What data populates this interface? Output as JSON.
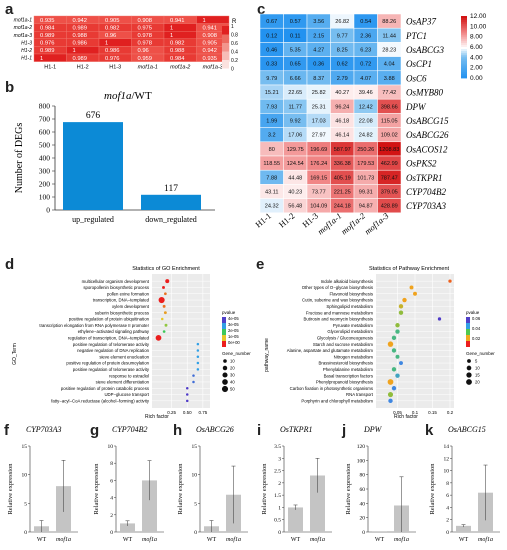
{
  "panel_labels": [
    "a",
    "b",
    "c",
    "d",
    "e",
    "f",
    "g",
    "h",
    "i",
    "j",
    "k"
  ],
  "panel_a": {
    "legend_title": "R",
    "legend_ticks": [
      "1",
      "0.8",
      "0.6",
      "0.4",
      "0.2",
      "0"
    ]
  },
  "panel_b": {
    "title_italic": "mof1a",
    "title_rest": "/WT",
    "wt_label": "WT"
  },
  "panel_c": {
    "colorbar_ticks": [
      "12.00",
      "10.00",
      "8.00",
      "6.00",
      "4.00",
      "2.00",
      "0.00"
    ]
  },
  "panel_d": {
    "title": "Statistics of GO Enrichment",
    "ylabel": "GO_Term",
    "xlabel": "Rich factor",
    "legend_color_title": "pvalue",
    "legend_color_ticks": [
      "4e-05",
      "3e-05",
      "2e-05",
      "1e-05",
      "0e+00"
    ],
    "legend_size_title": "Gene_number",
    "legend_size_ticks": [
      "10",
      "20",
      "30",
      "40",
      "50"
    ]
  },
  "panel_e": {
    "title": "Statistics of Pathway Enrichment",
    "ylabel": "pathway_name",
    "xlabel": "Rich factor",
    "legend_color_title": "pvalue",
    "legend_color_ticks": [
      "0.06",
      "0.04",
      "0.02"
    ],
    "legend_size_title": "Gene_number",
    "legend_size_ticks": [
      "5",
      "10",
      "15",
      "20"
    ]
  },
  "bar_ylabel": "Relative expression",
  "chart_data": [
    {
      "id": "a",
      "type": "heatmap",
      "rows": [
        "mof1a-1",
        "mof1a-2",
        "mof1a-3",
        "H1-3",
        "H1-2",
        "H1-1"
      ],
      "columns": [
        "H1-1",
        "H1-2",
        "H1-3",
        "mof1a-1",
        "mof1a-2",
        "mof1a-3"
      ],
      "values": [
        [
          0.935,
          0.942,
          0.905,
          0.908,
          0.941,
          1
        ],
        [
          0.984,
          0.989,
          0.982,
          0.975,
          1,
          0.941
        ],
        [
          0.989,
          0.988,
          0.96,
          0.978,
          1,
          0.908
        ],
        [
          0.976,
          0.986,
          1,
          0.978,
          0.982,
          0.905
        ],
        [
          0.989,
          1,
          0.986,
          0.96,
          0.988,
          0.942
        ],
        [
          1,
          0.989,
          0.976,
          0.959,
          0.984,
          0.935
        ]
      ],
      "color_range": [
        0,
        1
      ]
    },
    {
      "id": "b",
      "type": "bar",
      "categories": [
        "up_regulated",
        "down_regulated"
      ],
      "values": [
        676,
        117
      ],
      "ylabel": "Number of DEGs",
      "ylim": [
        0,
        800
      ],
      "yticks": [
        0,
        100,
        200,
        300,
        400,
        500,
        600,
        700,
        800
      ],
      "color": "#0c8ad6"
    },
    {
      "id": "c",
      "type": "heatmap",
      "rows": [
        "OsAP37",
        "PTC1",
        "OsABCG3",
        "OsCP1",
        "OsC6",
        "OsMYB80",
        "DPW",
        "OsABCG15",
        "OsABCG26",
        "OsACOS12",
        "OsPKS2",
        "OsTKPR1",
        "CYP704B2",
        "CYP703A3"
      ],
      "columns": [
        "H1-1",
        "H1-2",
        "H1-3",
        "mof1a-1",
        "mof1a-2",
        "mof1a-3"
      ],
      "values": [
        [
          0.67,
          0.57,
          3.56,
          26.82,
          0.54,
          88.26
        ],
        [
          0.12,
          0.11,
          2.15,
          9.77,
          2.36,
          11.44
        ],
        [
          0.46,
          5.35,
          4.27,
          8.25,
          6.23,
          28.23
        ],
        [
          0.33,
          0.65,
          0.36,
          0.62,
          0.72,
          4.04
        ],
        [
          9.79,
          6.66,
          8.37,
          2.79,
          4.07,
          3.88
        ],
        [
          15.21,
          22.65,
          25.82,
          40.27,
          39.46,
          77.42
        ],
        [
          7.93,
          11.77,
          25.31,
          96.24,
          12.42,
          398.66
        ],
        [
          1.99,
          9.92,
          17.03,
          46.18,
          22.08,
          115.05
        ],
        [
          3.2,
          17.06,
          27.97,
          46.14,
          24.82,
          109.02
        ],
        [
          80,
          129.75,
          196.69,
          587.97,
          250.26,
          1208.83
        ],
        [
          118.55,
          124.54,
          176.24,
          336.38,
          179.53,
          462.99
        ],
        [
          7.88,
          44.48,
          169.15,
          405.19,
          101.73,
          787.47
        ],
        [
          43.11,
          40.23,
          73.77,
          221.25,
          99.31,
          379.05
        ],
        [
          24.32,
          56.48,
          104.09,
          244.18,
          94.87,
          428.89
        ]
      ],
      "color_range": [
        0,
        12
      ]
    },
    {
      "id": "d",
      "type": "scatter",
      "terms": [
        "multicellular organism development",
        "sporopollenin biosynthetic process",
        "pollen exine formation",
        "transcription, DNA−templated",
        "xylem development",
        "suberin biosynthetic process",
        "positive regulation of protein ubiquitination",
        "transcription elongation from RNA polymerase II promoter",
        "ethylene−activated signaling pathway",
        "regulation of transcription, DNA−templated",
        "positive regulation of telomerase activity",
        "negative regulation of DNA replication",
        "sieve element enucleation",
        "positive regulation of protein desumoylation",
        "positive regulation of telomerase activity",
        "response to estradiol",
        "sieve element differentiation",
        "positive regulation of protein catabolic process",
        "UDP−glucose transport",
        "fatty−acyl−CoA reductase (alcohol−forming) activity"
      ],
      "rich_factor": [
        0.18,
        0.12,
        0.15,
        0.09,
        0.13,
        0.15,
        0.1,
        0.16,
        0.13,
        0.04,
        0.67,
        0.67,
        0.67,
        0.67,
        0.67,
        0.6,
        0.6,
        0.5,
        0.5,
        0.5
      ],
      "gene_number": [
        14,
        4,
        3,
        50,
        4,
        4,
        2,
        4,
        3,
        42,
        2,
        2,
        2,
        2,
        2,
        2,
        2,
        2,
        2,
        2
      ],
      "pvalue": [
        0.0,
        0.0,
        1e-05,
        0.0,
        1e-05,
        1.5e-05,
        2e-05,
        2.5e-05,
        3e-05,
        0.0,
        4e-05,
        4e-05,
        4e-05,
        4e-05,
        4e-05,
        4.5e-05,
        4.5e-05,
        5e-05,
        5e-05,
        5e-05
      ],
      "xticks": [
        0.25,
        0.5,
        0.75
      ],
      "xlim": [
        0,
        0.8
      ]
    },
    {
      "id": "e",
      "type": "scatter",
      "terms": [
        "Indole alkaloid biosynthesis",
        "Other types of O−glycan biosynthesis",
        "Flavonoid biosynthesis",
        "Cutin, suberine and wax biosynthesis",
        "Sphingolipid metabolism",
        "Fructose and mannose metabolism",
        "Butirosin and neomycin biosynthesis",
        "Pyruvate metabolism",
        "Glycerolipid metabolism",
        "Glycolysis / Gluconeogenesis",
        "Starch and sucrose metabolism",
        "Alanine, aspartate and glutamate metabolism",
        "Nitrogen metabolism",
        "Brassinosteroid biosynthesis",
        "Phenylalanine metabolism",
        "Basal transcription factors",
        "Phenylpropanoid biosynthesis",
        "Carbon fixation in photosynthetic organisms",
        "RNA transport",
        "Porphyrin and chlorophyll metabolism"
      ],
      "rich_factor": [
        0.2,
        0.09,
        0.1,
        0.07,
        0.06,
        0.06,
        0.17,
        0.05,
        0.05,
        0.04,
        0.03,
        0.04,
        0.05,
        0.06,
        0.04,
        0.05,
        0.03,
        0.04,
        0.03,
        0.03
      ],
      "gene_number": [
        1,
        2,
        2,
        3,
        3,
        3,
        1,
        3,
        3,
        3,
        6,
        3,
        2,
        2,
        3,
        3,
        7,
        3,
        5,
        3
      ],
      "pvalue": [
        0.01,
        0.02,
        0.02,
        0.02,
        0.025,
        0.03,
        0.06,
        0.03,
        0.04,
        0.04,
        0.02,
        0.04,
        0.04,
        0.05,
        0.04,
        0.045,
        0.02,
        0.05,
        0.03,
        0.05
      ],
      "xticks": [
        0.05,
        0.1,
        0.15,
        0.2
      ],
      "xlim": [
        0,
        0.2
      ]
    },
    {
      "id": "f",
      "type": "bar",
      "title": "CYP703A3",
      "categories": [
        "WT",
        "mof1a"
      ],
      "values": [
        1.0,
        8.0
      ],
      "errors": [
        1.0,
        4.5
      ],
      "ylim": [
        0,
        15
      ],
      "yticks": [
        0,
        5,
        10,
        15
      ]
    },
    {
      "id": "g",
      "type": "bar",
      "title": "CYP704B2",
      "categories": [
        "WT",
        "mof1a"
      ],
      "values": [
        1.0,
        6.0
      ],
      "errors": [
        0.3,
        2.3
      ],
      "ylim": [
        0,
        10
      ],
      "yticks": [
        0,
        2,
        4,
        6,
        8,
        10
      ]
    },
    {
      "id": "h",
      "type": "bar",
      "title": "OsABCG26",
      "categories": [
        "WT",
        "mof1a"
      ],
      "values": [
        1.0,
        6.5
      ],
      "errors": [
        1.0,
        5.0
      ],
      "ylim": [
        0,
        15
      ],
      "yticks": [
        0,
        5,
        10,
        15
      ]
    },
    {
      "id": "i",
      "type": "bar",
      "title": "OsTKPR1",
      "categories": [
        "WT",
        "mof1a"
      ],
      "values": [
        1.0,
        2.3
      ],
      "errors": [
        0.1,
        0.7
      ],
      "ylim": [
        0,
        3.5
      ],
      "yticks": [
        0,
        0.5,
        1,
        1.5,
        2,
        2.5,
        3,
        3.5
      ]
    },
    {
      "id": "j",
      "type": "bar",
      "title": "DPW",
      "categories": [
        "WT",
        "mof1a"
      ],
      "values": [
        1.0,
        37
      ],
      "errors": [
        0,
        40
      ],
      "ylim": [
        0,
        120
      ],
      "yticks": [
        0,
        20,
        40,
        60,
        80,
        100,
        120
      ]
    },
    {
      "id": "k",
      "type": "bar",
      "title": "OsABCG15",
      "categories": [
        "WT",
        "mof1a"
      ],
      "values": [
        1.0,
        6.4
      ],
      "errors": [
        0.2,
        4.5
      ],
      "ylim": [
        0,
        14
      ],
      "yticks": [
        0,
        2,
        4,
        6,
        8,
        10,
        12,
        14
      ]
    }
  ]
}
